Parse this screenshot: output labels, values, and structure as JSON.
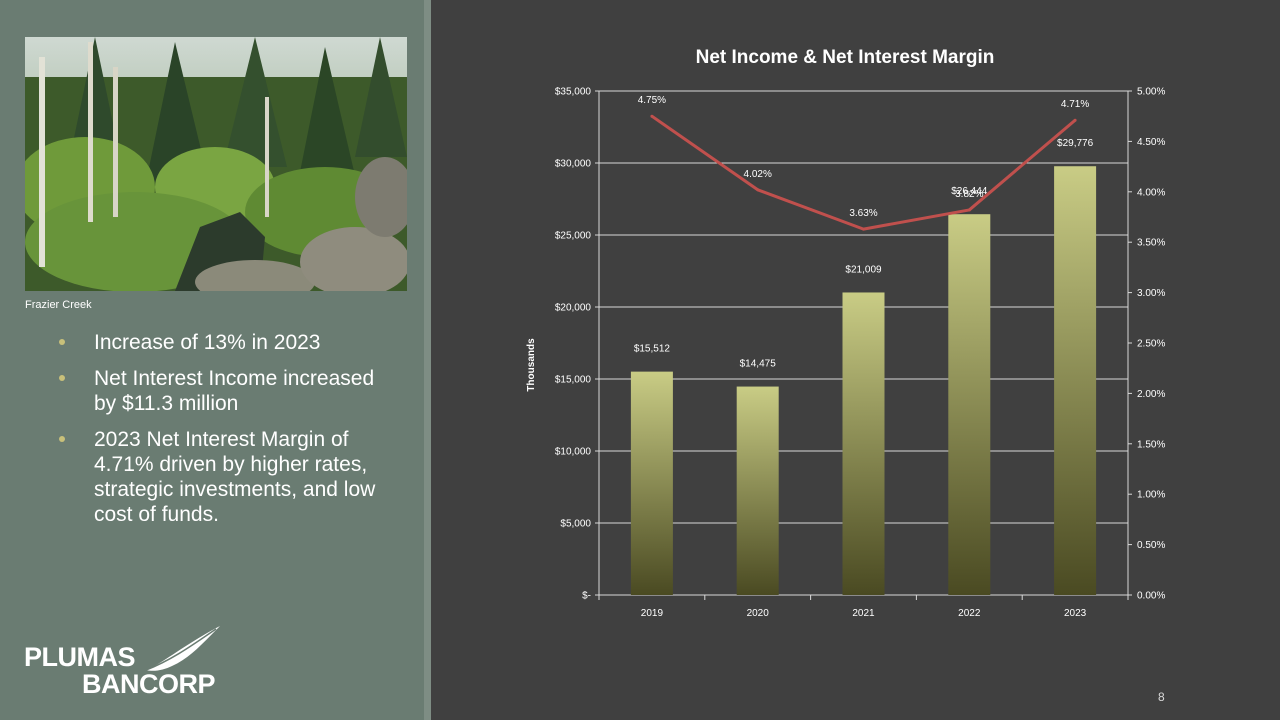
{
  "photo": {
    "caption": "Frazier Creek"
  },
  "bullets": [
    "Increase of 13% in 2023",
    "Net Interest Income increased by $11.3 million",
    "2023 Net Interest Margin of 4.71% driven by higher rates, strategic investments, and low cost of funds."
  ],
  "logo": {
    "line1": "PLUMAS",
    "line2": "BANCORP"
  },
  "page_number": "8",
  "colors": {
    "bar_top": "#c9cc85",
    "bar_bottom": "#4a4a22",
    "line": "#c0504d",
    "text": "#ffffff"
  },
  "chart_data": {
    "type": "bar",
    "title": "Net Income & Net Interest Margin",
    "ylabel": "Thousands",
    "categories": [
      "2019",
      "2020",
      "2021",
      "2022",
      "2023"
    ],
    "ylim": [
      0,
      35000
    ],
    "y_ticks": [
      "$-",
      "$5,000",
      "$10,000",
      "$15,000",
      "$20,000",
      "$25,000",
      "$30,000",
      "$35,000"
    ],
    "y2lim": [
      0,
      5.0
    ],
    "y2_ticks": [
      "0.00%",
      "0.50%",
      "1.00%",
      "1.50%",
      "2.00%",
      "2.50%",
      "3.00%",
      "3.50%",
      "4.00%",
      "4.50%",
      "5.00%"
    ],
    "grid": true,
    "series": [
      {
        "type": "bar",
        "axis": "left",
        "values": [
          15512,
          14475,
          21009,
          26444,
          29776
        ],
        "labels": [
          "$15,512",
          "$14,475",
          "$21,009",
          "$26,444",
          "$29,776"
        ]
      },
      {
        "type": "line",
        "axis": "right",
        "values": [
          4.75,
          4.02,
          3.63,
          3.82,
          4.71
        ],
        "labels": [
          "4.75%",
          "4.02%",
          "3.63%",
          "3.82%",
          "4.71%"
        ]
      }
    ]
  }
}
